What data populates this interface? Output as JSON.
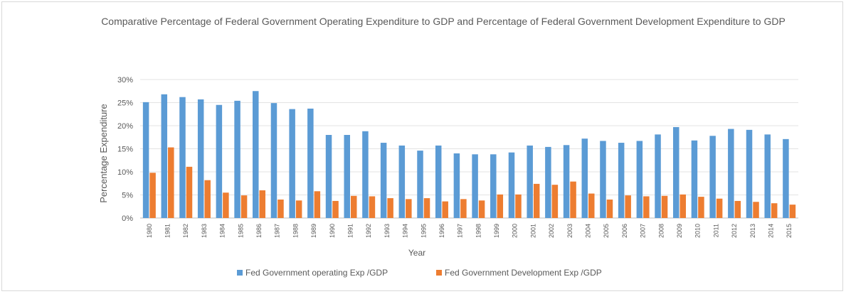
{
  "chart_data": {
    "type": "bar",
    "title": "Comparative Percentage of Federal Government Operating Expenditure to GDP  and Percentage of Federal Government Development Expenditure to GDP",
    "xlabel": "Year",
    "ylabel": "Percentage Expenditure",
    "ylim": [
      0,
      30
    ],
    "y_ticks": [
      "0%",
      "5%",
      "10%",
      "15%",
      "20%",
      "25%",
      "30%"
    ],
    "grid": true,
    "legend_position": "bottom",
    "categories": [
      "1980",
      "1981",
      "1982",
      "1983",
      "1984",
      "1985",
      "1986",
      "1987",
      "1988",
      "1989",
      "1990",
      "1991",
      "1992",
      "1993",
      "1994",
      "1995",
      "1996",
      "1997",
      "1998",
      "1999",
      "2000",
      "2001",
      "2002",
      "2003",
      "2004",
      "2005",
      "2006",
      "2007",
      "2008",
      "2009",
      "2010",
      "2011",
      "2012",
      "2013",
      "2014",
      "2015"
    ],
    "series": [
      {
        "name": "Fed Government operating Exp /GDP",
        "color": "#5b9bd5",
        "values": [
          25.1,
          26.8,
          26.2,
          25.7,
          24.5,
          25.4,
          27.5,
          24.9,
          23.6,
          23.7,
          18.0,
          18.0,
          18.8,
          16.3,
          15.7,
          14.6,
          15.7,
          14.0,
          13.8,
          13.8,
          14.2,
          15.7,
          15.4,
          15.8,
          17.2,
          16.7,
          16.3,
          16.7,
          18.1,
          19.7,
          16.8,
          17.8,
          19.3,
          19.1,
          18.1,
          17.1
        ]
      },
      {
        "name": "Fed Government Development Exp /GDP",
        "color": "#ed7d31",
        "values": [
          9.8,
          15.3,
          11.1,
          8.2,
          5.5,
          4.9,
          6.0,
          4.0,
          3.8,
          5.8,
          3.7,
          4.8,
          4.7,
          4.3,
          4.1,
          4.3,
          3.6,
          4.1,
          3.8,
          5.1,
          5.1,
          7.4,
          7.2,
          7.9,
          5.3,
          4.0,
          4.9,
          4.7,
          4.8,
          5.1,
          4.6,
          4.2,
          3.7,
          3.5,
          3.2,
          2.9
        ]
      }
    ]
  }
}
